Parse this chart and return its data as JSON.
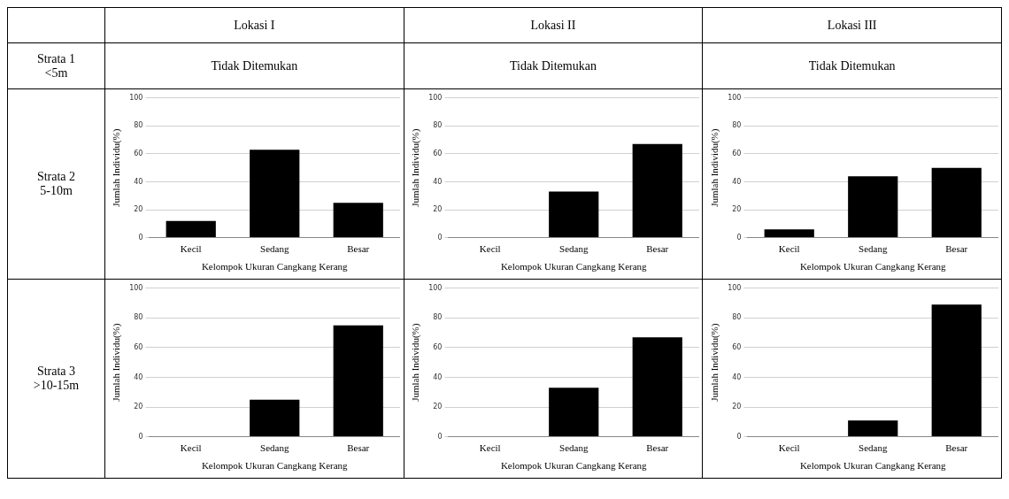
{
  "chart_data": [
    {
      "type": "other",
      "annotations": [
        "Lokasi I",
        "Lokasi II",
        "Lokasi III",
        "Strata 1\n<5m",
        "Tidak Ditemukan",
        "Tidak Ditemukan",
        "Tidak Ditemukan",
        "Strata 2\n5-10m",
        "Strata 3\n>10-15m"
      ]
    },
    {
      "type": "bar",
      "categories": [
        "Kecil",
        "Sedang",
        "Besar"
      ],
      "values": [
        12,
        63,
        25
      ],
      "color": "#000000",
      "xlabel": "Kelompok Ukuran Cangkang Kerang",
      "ylabel": "Jumlah Individu(%)",
      "ylim": [
        0,
        100
      ],
      "yticks": [
        0,
        20,
        40,
        60,
        80,
        100
      ],
      "grid": "y"
    },
    {
      "type": "bar",
      "categories": [
        "Kecil",
        "Sedang",
        "Besar"
      ],
      "values": [
        0,
        33,
        67
      ],
      "color": "#000000",
      "xlabel": "Kelompok Ukuran Cangkang Kerang",
      "ylabel": "Jumlah Individu(%)",
      "ylim": [
        0,
        100
      ],
      "yticks": [
        0,
        20,
        40,
        60,
        80,
        100
      ],
      "grid": "y"
    },
    {
      "type": "bar",
      "categories": [
        "Kecil",
        "Sedang",
        "Besar"
      ],
      "values": [
        6,
        44,
        50
      ],
      "color": "#000000",
      "xlabel": "Kelompok Ukuran Cangkang Kerang",
      "ylabel": "Jumlah Individu(%)",
      "ylim": [
        0,
        100
      ],
      "yticks": [
        0,
        20,
        40,
        60,
        80,
        100
      ],
      "grid": "y"
    },
    {
      "type": "bar",
      "categories": [
        "Kecil",
        "Sedang",
        "Besar"
      ],
      "values": [
        0,
        25,
        75
      ],
      "color": "#000000",
      "xlabel": "Kelompok Ukuran Cangkang Kerang",
      "ylabel": "Jumlah Individu(%)",
      "ylim": [
        0,
        100
      ],
      "yticks": [
        0,
        20,
        40,
        60,
        80,
        100
      ],
      "grid": "y"
    },
    {
      "type": "bar",
      "categories": [
        "Kecil",
        "Sedang",
        "Besar"
      ],
      "values": [
        0,
        33,
        67
      ],
      "color": "#000000",
      "xlabel": "Kelompok Ukuran Cangkang Kerang",
      "ylabel": "Jumlah Individu(%)",
      "ylim": [
        0,
        100
      ],
      "yticks": [
        0,
        20,
        40,
        60,
        80,
        100
      ],
      "grid": "y"
    },
    {
      "type": "bar",
      "categories": [
        "Kecil",
        "Sedang",
        "Besar"
      ],
      "values": [
        0,
        11,
        89
      ],
      "color": "#000000",
      "xlabel": "Kelompok Ukuran Cangkang Kerang",
      "ylabel": "Jumlah Individu(%)",
      "ylim": [
        0,
        100
      ],
      "yticks": [
        0,
        20,
        40,
        60,
        80,
        100
      ],
      "grid": "y"
    }
  ]
}
